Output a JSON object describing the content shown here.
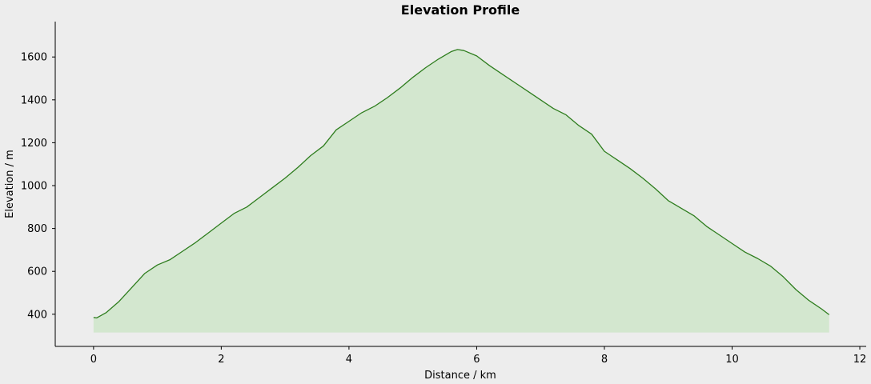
{
  "chart_data": {
    "type": "area",
    "title": "Elevation Profile",
    "xlabel": "Distance / km",
    "ylabel": "Elevation / m",
    "xlim": [
      -0.6,
      12.1
    ],
    "ylim": [
      250,
      1765
    ],
    "fill_baseline": 315,
    "xticks": [
      0,
      2,
      4,
      6,
      8,
      10,
      12
    ],
    "yticks": [
      400,
      600,
      800,
      1000,
      1200,
      1400,
      1600
    ],
    "grid": false,
    "colors": {
      "line": "#2e7d1e",
      "fill": "#d3e7cf",
      "background": "#ededed"
    },
    "series": [
      {
        "x": [
          0.0,
          0.05,
          0.2,
          0.4,
          0.6,
          0.8,
          1.0,
          1.2,
          1.4,
          1.6,
          1.8,
          2.0,
          2.2,
          2.4,
          2.6,
          2.8,
          3.0,
          3.2,
          3.4,
          3.6,
          3.8,
          4.0,
          4.2,
          4.4,
          4.6,
          4.8,
          5.0,
          5.2,
          5.4,
          5.6,
          5.7,
          5.8,
          6.0,
          6.2,
          6.4,
          6.6,
          6.8,
          7.0,
          7.2,
          7.4,
          7.6,
          7.8,
          8.0,
          8.2,
          8.4,
          8.6,
          8.8,
          9.0,
          9.2,
          9.4,
          9.6,
          9.8,
          10.0,
          10.2,
          10.4,
          10.6,
          10.8,
          11.0,
          11.2,
          11.4,
          11.52
        ],
        "y": [
          385,
          383,
          408,
          460,
          525,
          590,
          630,
          655,
          695,
          735,
          780,
          825,
          870,
          900,
          945,
          990,
          1035,
          1085,
          1140,
          1185,
          1260,
          1300,
          1340,
          1370,
          1410,
          1455,
          1505,
          1550,
          1590,
          1625,
          1635,
          1630,
          1605,
          1560,
          1520,
          1480,
          1440,
          1400,
          1360,
          1330,
          1280,
          1240,
          1160,
          1120,
          1080,
          1035,
          985,
          930,
          895,
          860,
          810,
          770,
          730,
          690,
          660,
          625,
          575,
          515,
          465,
          425,
          398
        ]
      }
    ]
  }
}
